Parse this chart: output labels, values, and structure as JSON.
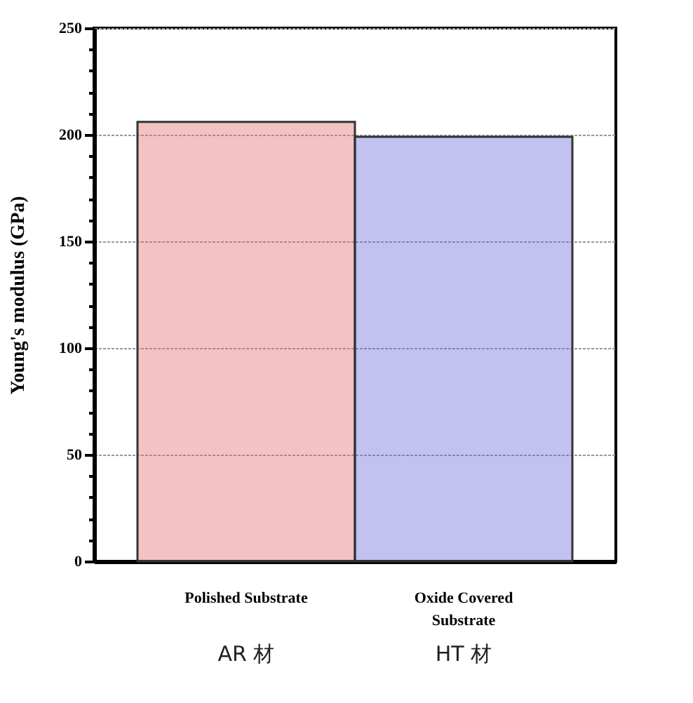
{
  "chart_data": {
    "type": "bar",
    "ylabel": "Young's modulus (GPa)",
    "categories": [
      "Polished Substrate",
      "Oxide Covered Substrate"
    ],
    "values": [
      206,
      199
    ],
    "colors": [
      "#e06666",
      "#6666dd"
    ],
    "ylim": [
      0,
      250
    ],
    "yticks": [
      0,
      {
        "value": 10,
        "label": null
      },
      {
        "value": 20,
        "label": null
      },
      {
        "value": 30,
        "label": null
      },
      {
        "value": 40,
        "label": null
      },
      50,
      {
        "value": 60,
        "label": null
      },
      {
        "value": 70,
        "label": null
      },
      {
        "value": 80,
        "label": null
      },
      {
        "value": 90,
        "label": null
      },
      100,
      {
        "value": 110,
        "label": null
      },
      {
        "value": 120,
        "label": null
      },
      {
        "value": 130,
        "label": null
      },
      {
        "value": 140,
        "label": null
      },
      150,
      {
        "value": 160,
        "label": null
      },
      {
        "value": 170,
        "label": null
      },
      {
        "value": 180,
        "label": null
      },
      {
        "value": 190,
        "label": null
      },
      200,
      {
        "value": 210,
        "label": null
      },
      {
        "value": 220,
        "label": null
      },
      {
        "value": 230,
        "label": null
      },
      {
        "value": 240,
        "label": null
      },
      250
    ],
    "grid": "y",
    "annotations": [
      "AR 材",
      "HT 材"
    ]
  }
}
